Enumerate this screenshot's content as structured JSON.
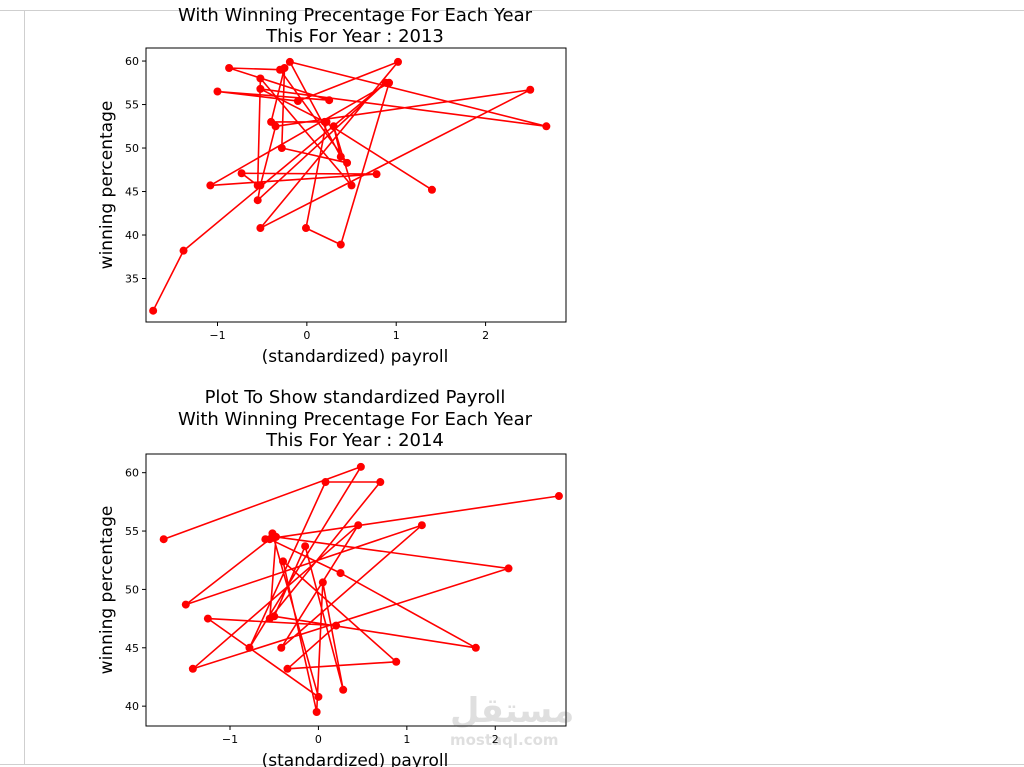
{
  "chart_data": [
    {
      "type": "line",
      "title_lines": [
        "With Winning Precentage For Each Year",
        "This For Year : 2013"
      ],
      "xlabel": "(standardized) payroll",
      "ylabel": "winning percentage",
      "xlim": [
        -1.8,
        2.9
      ],
      "ylim": [
        30.0,
        61.5
      ],
      "xticks": [
        -1,
        0,
        1,
        2
      ],
      "yticks": [
        35,
        40,
        45,
        50,
        55,
        60
      ],
      "color": "#ff0000",
      "x": [
        -1.72,
        -1.38,
        0.88,
        -0.55,
        -0.52,
        -0.35,
        2.5,
        -0.52,
        1.02,
        -0.1,
        -1.0,
        0.25,
        -0.87,
        -0.3,
        0.45,
        -0.28,
        -0.25,
        -0.4,
        0.22,
        -0.01,
        0.38,
        0.92,
        -1.08,
        0.78,
        -0.73,
        -0.55,
        -0.52,
        0.5,
        0.3,
        0.38,
        -0.19,
        2.68,
        -0.52,
        0.2,
        1.4
      ],
      "y": [
        31.3,
        38.2,
        57.5,
        44.0,
        45.7,
        52.5,
        56.7,
        40.8,
        59.9,
        55.4,
        56.5,
        55.5,
        59.2,
        59.0,
        48.3,
        50.0,
        59.2,
        53.0,
        53.0,
        40.8,
        38.9,
        57.5,
        45.7,
        47.0,
        47.1,
        45.7,
        58.0,
        45.7,
        52.5,
        49.0,
        59.9,
        52.5,
        56.8,
        53.0,
        45.2
      ]
    },
    {
      "type": "line",
      "title_lines": [
        "Plot To Show standardized Payroll",
        "With Winning Precentage For Each Year",
        "This For Year : 2014"
      ],
      "xlabel": "(standardized) payroll",
      "ylabel": "winning percentage",
      "xlim": [
        -1.95,
        2.8
      ],
      "ylim": [
        38.3,
        61.6
      ],
      "xticks": [
        -1,
        0,
        1,
        2
      ],
      "yticks": [
        40,
        45,
        50,
        55,
        60
      ],
      "color": "#ff0000",
      "x": [
        -1.75,
        0.48,
        -0.78,
        0.08,
        0.7,
        -0.55,
        -0.48,
        2.15,
        -1.42,
        0.45,
        -0.42,
        1.17,
        -1.5,
        -0.55,
        0.25,
        1.78,
        -0.5,
        -0.15,
        0.28,
        0.05,
        -0.02,
        -0.4,
        0.88,
        -0.35,
        0.2,
        -1.25,
        0.0,
        -0.52,
        -0.6,
        2.72
      ],
      "y": [
        54.3,
        60.5,
        45.0,
        59.2,
        59.2,
        47.5,
        54.5,
        51.8,
        43.2,
        55.5,
        45.0,
        55.5,
        48.7,
        54.3,
        51.4,
        45.0,
        47.7,
        53.7,
        41.4,
        50.6,
        39.5,
        52.4,
        43.8,
        43.2,
        46.9,
        47.5,
        40.8,
        54.8,
        54.3,
        58.0
      ]
    }
  ],
  "watermark": {
    "brand": "مستقل",
    "domain": "mostaql.com"
  }
}
